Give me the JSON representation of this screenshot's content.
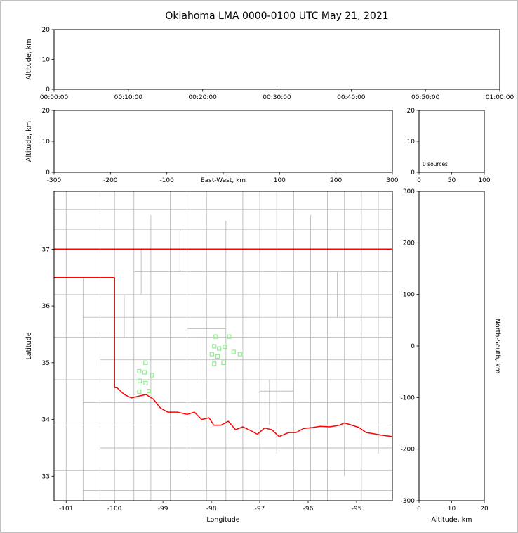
{
  "title": "Oklahoma LMA 0000-0100 UTC May 21, 2021",
  "colors": {
    "state_border": "#ff0000",
    "county_line": "#b3b3b3",
    "source_marker": "#90EE90",
    "axis": "#000000",
    "figure_border": "#c0c0c0"
  },
  "chart_data": [
    {
      "id": "time_height",
      "type": "scatter",
      "xlabel": "",
      "ylabel": "Altitude, km",
      "xlim": [
        0,
        3600
      ],
      "xticks": [
        0,
        600,
        1200,
        1800,
        2400,
        3000,
        3600
      ],
      "xtick_labels": [
        "00:00:00",
        "00:10:00",
        "00:20:00",
        "00:30:00",
        "00:40:00",
        "00:50:00",
        "01:00:00"
      ],
      "ylim": [
        0,
        20
      ],
      "yticks": [
        0,
        10,
        20
      ],
      "points": []
    },
    {
      "id": "ew_height",
      "type": "scatter",
      "xlabel": "East-West, km",
      "ylabel": "Altitude, km",
      "xlim": [
        -300,
        300
      ],
      "xticks": [
        -300,
        -200,
        -100,
        0,
        100,
        200,
        300
      ],
      "ylim": [
        0,
        20
      ],
      "yticks": [
        0,
        10,
        20
      ],
      "points": []
    },
    {
      "id": "alt_histogram",
      "type": "line",
      "xlabel": "",
      "ylabel": "",
      "xlim": [
        0,
        100
      ],
      "xticks": [
        0,
        50,
        100
      ],
      "ylim": [
        0,
        20
      ],
      "yticks": [
        0,
        10,
        20
      ],
      "annotation": "0 sources",
      "points": []
    },
    {
      "id": "plan_view",
      "type": "scatter",
      "xlabel": "Longitude",
      "ylabel": "Latitude",
      "xlim": [
        -101.25,
        -94.26
      ],
      "xticks": [
        -101,
        -100,
        -99,
        -98,
        -97,
        -96,
        -95
      ],
      "ylim": [
        32.57,
        38.02
      ],
      "yticks": [
        33,
        34,
        35,
        36,
        37
      ],
      "sources": [
        [
          -97.91,
          35.46
        ],
        [
          -97.63,
          35.46
        ],
        [
          -97.94,
          35.29
        ],
        [
          -97.84,
          35.25
        ],
        [
          -97.72,
          35.28
        ],
        [
          -97.99,
          35.15
        ],
        [
          -97.87,
          35.11
        ],
        [
          -97.75,
          35.0
        ],
        [
          -97.94,
          34.98
        ],
        [
          -97.54,
          35.19
        ],
        [
          -97.41,
          35.15
        ],
        [
          -99.36,
          35.0
        ],
        [
          -99.49,
          34.85
        ],
        [
          -99.38,
          34.83
        ],
        [
          -99.23,
          34.78
        ],
        [
          -99.48,
          34.68
        ],
        [
          -99.36,
          34.64
        ],
        [
          -99.49,
          34.49
        ],
        [
          -99.29,
          34.5
        ]
      ],
      "state_border": [
        [
          [
            -101.25,
            37.0
          ],
          [
            -94.26,
            37.0
          ]
        ],
        [
          [
            -101.25,
            36.5
          ],
          [
            -100.0,
            36.5
          ]
        ],
        [
          [
            -100.0,
            36.5
          ],
          [
            -100.0,
            34.56
          ]
        ],
        [
          [
            -100.0,
            34.56
          ],
          [
            -99.95,
            34.56
          ],
          [
            -99.8,
            34.44
          ],
          [
            -99.65,
            34.38
          ],
          [
            -99.5,
            34.41
          ],
          [
            -99.35,
            34.44
          ],
          [
            -99.2,
            34.36
          ],
          [
            -99.05,
            34.2
          ],
          [
            -98.9,
            34.13
          ],
          [
            -98.7,
            34.13
          ],
          [
            -98.5,
            34.09
          ],
          [
            -98.35,
            34.13
          ],
          [
            -98.2,
            34.0
          ],
          [
            -98.05,
            34.03
          ],
          [
            -97.95,
            33.9
          ],
          [
            -97.8,
            33.9
          ],
          [
            -97.65,
            33.97
          ],
          [
            -97.5,
            33.82
          ],
          [
            -97.35,
            33.87
          ],
          [
            -97.2,
            33.81
          ],
          [
            -97.05,
            33.74
          ],
          [
            -96.9,
            33.85
          ],
          [
            -96.75,
            33.82
          ],
          [
            -96.6,
            33.7
          ],
          [
            -96.4,
            33.77
          ],
          [
            -96.25,
            33.77
          ],
          [
            -96.1,
            33.84
          ],
          [
            -95.9,
            33.86
          ],
          [
            -95.75,
            33.88
          ],
          [
            -95.55,
            33.87
          ],
          [
            -95.35,
            33.9
          ],
          [
            -95.25,
            33.94
          ],
          [
            -95.1,
            33.9
          ],
          [
            -94.95,
            33.86
          ],
          [
            -94.8,
            33.77
          ],
          [
            -94.65,
            33.75
          ],
          [
            -94.45,
            33.72
          ],
          [
            -94.26,
            33.7
          ]
        ]
      ],
      "county_lines": {
        "vertical": [
          [
            -101.0,
            32.57,
            38.02
          ],
          [
            -100.65,
            32.57,
            36.5
          ],
          [
            -100.3,
            32.57,
            38.02
          ],
          [
            -100.0,
            32.57,
            38.02
          ],
          [
            -99.6,
            32.57,
            38.02
          ],
          [
            -99.25,
            32.57,
            37.6
          ],
          [
            -98.85,
            32.57,
            38.02
          ],
          [
            -98.5,
            33.0,
            38.02
          ],
          [
            -98.1,
            32.57,
            38.02
          ],
          [
            -97.7,
            32.57,
            37.5
          ],
          [
            -97.35,
            32.57,
            38.02
          ],
          [
            -97.0,
            32.57,
            38.02
          ],
          [
            -96.65,
            33.4,
            38.02
          ],
          [
            -96.3,
            32.57,
            38.02
          ],
          [
            -95.95,
            32.57,
            37.6
          ],
          [
            -95.6,
            32.57,
            38.02
          ],
          [
            -95.25,
            33.0,
            38.02
          ],
          [
            -94.9,
            32.57,
            38.02
          ],
          [
            -94.55,
            33.4,
            38.02
          ],
          [
            -99.8,
            35.45,
            36.2
          ],
          [
            -98.3,
            34.7,
            35.45
          ],
          [
            -96.8,
            33.9,
            34.7
          ],
          [
            -95.4,
            35.8,
            36.6
          ],
          [
            -99.45,
            36.2,
            37.0
          ],
          [
            -98.65,
            36.6,
            37.35
          ]
        ],
        "horizontal": [
          [
            37.7,
            -101.25,
            -94.26
          ],
          [
            37.35,
            -101.25,
            -94.26
          ],
          [
            36.6,
            -99.6,
            -94.26
          ],
          [
            36.2,
            -101.25,
            -94.26
          ],
          [
            35.8,
            -100.65,
            -94.26
          ],
          [
            35.45,
            -101.25,
            -94.26
          ],
          [
            35.05,
            -100.3,
            -94.26
          ],
          [
            34.7,
            -101.25,
            -94.26
          ],
          [
            34.3,
            -100.65,
            -94.26
          ],
          [
            33.9,
            -101.25,
            -94.26
          ],
          [
            33.5,
            -100.3,
            -94.26
          ],
          [
            33.1,
            -101.25,
            -94.26
          ],
          [
            32.75,
            -100.65,
            -94.26
          ],
          [
            34.5,
            -97.0,
            -96.3
          ],
          [
            35.6,
            -98.5,
            -97.7
          ]
        ]
      }
    },
    {
      "id": "ns_height",
      "type": "scatter",
      "xlabel": "Altitude, km",
      "ylabel": "North-South, km",
      "xlim": [
        0,
        20
      ],
      "xticks": [
        0,
        10,
        20
      ],
      "ylim": [
        -300,
        300
      ],
      "yticks": [
        -300,
        -200,
        -100,
        0,
        100,
        200,
        300
      ],
      "points": []
    }
  ]
}
